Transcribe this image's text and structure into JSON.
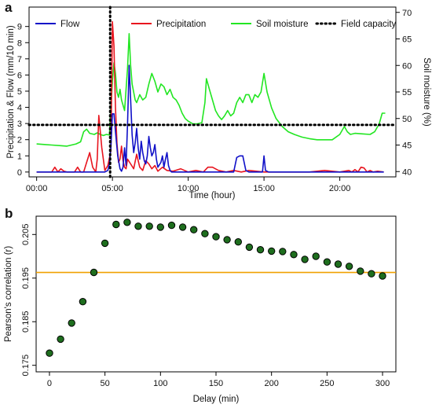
{
  "chart_data": [
    {
      "panel_label": "a",
      "type": "line",
      "xlabel": "Time (hour)",
      "ylabel": "Precipitation & Flow (mm/10 min)",
      "y2label": "Soil moisture (%)",
      "x_ticks": [
        "00:00",
        "05:00",
        "10:00",
        "15:00",
        "20:00"
      ],
      "x_tick_values": [
        0,
        5,
        10,
        15,
        20
      ],
      "y_ticks": [
        "0",
        "1",
        "2",
        "3",
        "4",
        "5",
        "6",
        "7",
        "8",
        "9"
      ],
      "y_tick_values": [
        0,
        1,
        2,
        3,
        4,
        5,
        6,
        7,
        8,
        9
      ],
      "y2_ticks": [
        "40",
        "45",
        "50",
        "55",
        "60",
        "65",
        "70"
      ],
      "y2_tick_values": [
        40,
        45,
        50,
        55,
        60,
        65,
        70
      ],
      "xlim": [
        -0.5,
        23.7
      ],
      "ylim": [
        -0.3,
        10.2
      ],
      "y2lim": [
        39,
        71
      ],
      "legend_position": "top",
      "series": [
        {
          "name": "Flow",
          "color": "#1010c8",
          "axis": "left",
          "x": [
            0,
            4.5,
            4.7,
            4.8,
            4.9,
            5.0,
            5.1,
            5.2,
            5.35,
            5.5,
            5.6,
            5.7,
            5.8,
            5.9,
            6.0,
            6.1,
            6.2,
            6.3,
            6.4,
            6.5,
            6.6,
            6.7,
            6.8,
            6.9,
            7.0,
            7.1,
            7.2,
            7.3,
            7.4,
            7.5,
            7.6,
            7.7,
            7.8,
            7.9,
            8.0,
            8.2,
            8.3,
            8.4,
            8.5,
            8.6,
            8.7,
            8.8,
            8.9,
            9.0,
            9.2,
            9.5,
            9.8,
            10.2,
            10.5,
            10.8,
            11.0,
            11.2,
            11.5,
            11.8,
            12.0,
            12.5,
            12.9,
            13.0,
            13.2,
            13.4,
            13.6,
            13.8,
            14.0,
            14.2,
            14.4,
            14.6,
            14.8,
            14.9,
            15.0,
            15.1,
            15.3,
            15.5,
            15.7,
            15.9,
            16.5,
            17.0,
            18.0,
            18.5,
            19.0,
            19.5,
            20.0,
            20.5,
            21.0,
            21.5,
            22.0,
            22.5,
            22.9
          ],
          "y": [
            0,
            0,
            0.1,
            0.5,
            1.5,
            3.6,
            3.6,
            2.5,
            1.0,
            0.2,
            0.05,
            0.3,
            1.5,
            0.4,
            3.0,
            6.6,
            4.5,
            2.3,
            1.2,
            1.8,
            2.7,
            1.5,
            0.8,
            1.9,
            1.2,
            0.7,
            0.5,
            1.0,
            2.2,
            1.5,
            1.0,
            1.2,
            1.7,
            0.8,
            0.3,
            0.6,
            1.0,
            0.3,
            0.8,
            1.2,
            0.4,
            0.1,
            0,
            0,
            0,
            0,
            0,
            0,
            0,
            0,
            0,
            0,
            0,
            0,
            0,
            0,
            0,
            0,
            0.9,
            1.0,
            1.0,
            0.1,
            0,
            0,
            0,
            0,
            0,
            0,
            1.0,
            0.1,
            0,
            0,
            0,
            0,
            0,
            0,
            0,
            0,
            0,
            0,
            0,
            0,
            0,
            0,
            0,
            0,
            0
          ]
        },
        {
          "name": "Precipitation",
          "color": "#e8141e",
          "axis": "left",
          "x": [
            0,
            1.0,
            1.2,
            1.4,
            1.6,
            1.8,
            2.0,
            2.2,
            2.5,
            2.7,
            2.9,
            3.1,
            3.3,
            3.5,
            3.7,
            3.9,
            4.0,
            4.1,
            4.3,
            4.5,
            4.7,
            4.9,
            5.0,
            5.1,
            5.2,
            5.3,
            5.4,
            5.5,
            5.6,
            5.7,
            5.8,
            5.9,
            6.0,
            6.2,
            6.4,
            6.6,
            6.8,
            7.0,
            7.2,
            7.4,
            7.6,
            7.8,
            8.0,
            8.3,
            8.6,
            9.0,
            9.5,
            10.0,
            10.5,
            11.0,
            11.3,
            11.6,
            12.0,
            12.5,
            13.0,
            13.5,
            14.0,
            14.5,
            15.0,
            16.0,
            17.0,
            18.0,
            19.0,
            20.0,
            20.6,
            20.8,
            21.0,
            21.2,
            21.4,
            21.6,
            21.8,
            22.0,
            22.2,
            22.5,
            22.9
          ],
          "y": [
            0,
            0,
            0.3,
            0,
            0.2,
            0.05,
            0,
            0,
            0,
            0.3,
            0,
            0,
            0.6,
            1.2,
            0.3,
            0,
            0.8,
            3.5,
            1.5,
            0.1,
            0.4,
            1.3,
            9.3,
            7.8,
            4.0,
            1.8,
            0.6,
            0.8,
            1.6,
            0.7,
            0.3,
            0.2,
            0.8,
            0.5,
            0.2,
            1.1,
            0.3,
            0.1,
            0.7,
            0.5,
            0.2,
            0.4,
            0.05,
            0.3,
            0.1,
            0.05,
            0.2,
            0,
            0.1,
            0,
            0.3,
            0.3,
            0.1,
            0,
            0.1,
            0,
            0.1,
            0.05,
            0,
            0,
            0,
            0,
            0.1,
            0,
            0.1,
            0,
            0.15,
            0,
            0.3,
            0.25,
            0,
            0.1,
            0,
            0.05,
            0
          ]
        },
        {
          "name": "Soil moisture",
          "color": "#22e622",
          "axis": "right",
          "x": [
            0,
            0.5,
            1.0,
            1.5,
            2.0,
            2.3,
            2.6,
            2.9,
            3.1,
            3.3,
            3.5,
            3.8,
            4.0,
            4.2,
            4.4,
            4.6,
            4.8,
            5.0,
            5.1,
            5.2,
            5.3,
            5.4,
            5.5,
            5.6,
            5.8,
            6.0,
            6.1,
            6.2,
            6.3,
            6.5,
            6.6,
            6.8,
            7.0,
            7.2,
            7.4,
            7.6,
            7.8,
            8.0,
            8.2,
            8.4,
            8.6,
            8.8,
            9.0,
            9.2,
            9.4,
            9.6,
            9.8,
            10.0,
            10.3,
            10.6,
            10.9,
            11.1,
            11.2,
            11.4,
            11.6,
            11.8,
            12.0,
            12.2,
            12.4,
            12.6,
            12.8,
            13.0,
            13.2,
            13.4,
            13.6,
            13.8,
            14.0,
            14.2,
            14.4,
            14.6,
            14.8,
            15.0,
            15.2,
            15.5,
            15.8,
            16.2,
            16.6,
            17.0,
            17.5,
            18.0,
            18.5,
            19.0,
            19.5,
            20.0,
            20.3,
            20.5,
            20.7,
            21.0,
            21.5,
            22.0,
            22.3,
            22.6,
            22.8,
            23.0
          ],
          "y": [
            45.2,
            45.1,
            45.0,
            44.9,
            44.8,
            45.0,
            45.2,
            45.6,
            47.5,
            48.0,
            47.2,
            47.0,
            47.3,
            47.0,
            46.8,
            47.0,
            46.9,
            57.0,
            60.5,
            58.5,
            55.0,
            54.0,
            55.5,
            53.5,
            51.5,
            59.5,
            66.0,
            60.0,
            56.5,
            53.5,
            53.0,
            54.5,
            53.5,
            54.0,
            56.5,
            58.5,
            57.0,
            55.0,
            56.5,
            56.0,
            54.5,
            55.5,
            54.0,
            53.5,
            52.5,
            51.0,
            50.0,
            49.5,
            49.0,
            49.0,
            49.2,
            53.0,
            57.5,
            55.5,
            53.5,
            51.5,
            50.5,
            49.8,
            50.5,
            51.5,
            50.5,
            51.0,
            53.0,
            54.0,
            53.0,
            54.5,
            54.5,
            53.0,
            54.5,
            54.0,
            55.0,
            58.5,
            55.0,
            52.0,
            50.0,
            48.5,
            47.5,
            47.0,
            46.5,
            46.2,
            46.0,
            46.0,
            46.0,
            47.0,
            48.5,
            47.5,
            47.0,
            47.2,
            47.1,
            47.0,
            47.5,
            49.0,
            51.0,
            51.0
          ]
        },
        {
          "name": "Field capacity",
          "color": "#000000",
          "style": "dotted",
          "axis": "right",
          "horizontal_y": 48.8,
          "vertical_x": 4.85
        }
      ]
    },
    {
      "panel_label": "b",
      "type": "scatter",
      "xlabel": "Delay (min)",
      "ylabel": "Pearson's correlation (r)",
      "x_ticks": [
        "0",
        "50",
        "100",
        "150",
        "200",
        "250",
        "300"
      ],
      "x_tick_values": [
        0,
        50,
        100,
        150,
        200,
        250,
        300
      ],
      "y_ticks": [
        "0.175",
        "0.185",
        "0.195",
        "0.205"
      ],
      "y_tick_values": [
        0.175,
        0.185,
        0.195,
        0.205
      ],
      "xlim": [
        -12,
        312
      ],
      "ylim": [
        0.1735,
        0.2092
      ],
      "reference_line": {
        "y": 0.1963,
        "color": "#f0a000"
      },
      "point_color": "#1e6e1e",
      "series": [
        {
          "x": [
            0,
            10,
            20,
            30,
            40,
            50,
            60,
            70,
            80,
            90,
            100,
            110,
            120,
            130,
            140,
            150,
            160,
            170,
            180,
            190,
            200,
            210,
            220,
            230,
            240,
            250,
            260,
            270,
            280,
            290,
            300
          ],
          "y": [
            0.1778,
            0.181,
            0.1847,
            0.1896,
            0.1963,
            0.203,
            0.2073,
            0.2078,
            0.2069,
            0.2069,
            0.2067,
            0.2071,
            0.2067,
            0.2061,
            0.2052,
            0.2045,
            0.2038,
            0.2033,
            0.2021,
            0.2015,
            0.2012,
            0.2011,
            0.2004,
            0.1993,
            0.2,
            0.1987,
            0.1982,
            0.1977,
            0.1966,
            0.196,
            0.1955
          ]
        }
      ]
    }
  ]
}
